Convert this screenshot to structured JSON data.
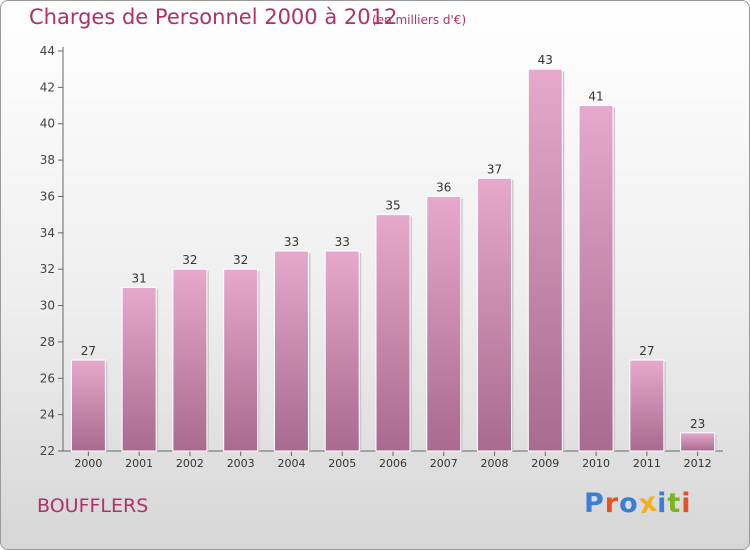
{
  "header": {
    "title": "Charges de Personnel 2000 à 2012",
    "unit": "(en milliers d'€)"
  },
  "footer": {
    "commune": "BOUFFLERS",
    "logo": "Proxiti"
  },
  "colors": {
    "accent": "#b0306a",
    "bar_light": "#e6a9cc",
    "bar_dark": "#a86a8e",
    "logo_letters": [
      "#3a7fd5",
      "#e8501f",
      "#3a7fd5",
      "#f2b21d",
      "#3a7fd5",
      "#7ab51d",
      "#e8501f"
    ]
  },
  "chart_data": {
    "type": "bar",
    "categories": [
      "2000",
      "2001",
      "2002",
      "2003",
      "2004",
      "2005",
      "2006",
      "2007",
      "2008",
      "2009",
      "2010",
      "2011",
      "2012"
    ],
    "values": [
      27,
      31,
      32,
      32,
      33,
      33,
      35,
      36,
      37,
      43,
      41,
      27,
      23
    ],
    "title": "Charges de Personnel 2000 à 2012",
    "subtitle": "(en milliers d'€)",
    "ylim": [
      22,
      44
    ],
    "yticks": [
      22,
      24,
      26,
      28,
      30,
      32,
      34,
      36,
      38,
      40,
      42,
      44
    ],
    "grid": false,
    "legend": "none"
  }
}
